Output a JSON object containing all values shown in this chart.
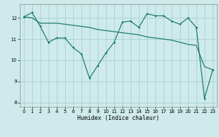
{
  "xlabel": "Humidex (Indice chaleur)",
  "bg_color": "#ceeaea",
  "line_color": "#1a7a6e",
  "grid_color": "#aacfcf",
  "ylim": [
    7.8,
    12.65
  ],
  "xlim": [
    -0.5,
    23.5
  ],
  "yticks": [
    8,
    9,
    10,
    11,
    12
  ],
  "xticks": [
    0,
    1,
    2,
    3,
    4,
    5,
    6,
    7,
    8,
    9,
    10,
    11,
    12,
    13,
    14,
    15,
    16,
    17,
    18,
    19,
    20,
    21,
    22,
    23
  ],
  "line1_x": [
    0,
    1,
    2,
    3,
    4,
    5,
    6,
    7,
    8,
    9,
    10,
    11,
    12,
    13,
    14,
    15,
    16,
    17,
    18,
    19,
    20,
    21
  ],
  "line1_y": [
    12.05,
    12.25,
    11.6,
    10.85,
    11.05,
    11.05,
    10.6,
    10.3,
    9.15,
    9.75,
    10.35,
    10.85,
    11.8,
    11.85,
    11.55,
    12.2,
    12.1,
    12.1,
    11.85,
    11.7,
    12.0,
    11.55
  ],
  "line2_x": [
    0,
    1,
    2,
    3,
    4,
    5,
    6,
    7,
    8,
    9,
    10,
    11,
    12,
    13,
    14,
    15,
    16,
    17,
    18,
    19,
    20,
    21,
    22,
    23
  ],
  "line2_y": [
    12.05,
    12.0,
    11.75,
    11.75,
    11.75,
    11.7,
    11.65,
    11.6,
    11.55,
    11.45,
    11.4,
    11.35,
    11.3,
    11.25,
    11.2,
    11.1,
    11.05,
    11.0,
    10.95,
    10.85,
    10.75,
    10.7,
    9.7,
    9.55
  ],
  "line3_x": [
    21,
    22,
    23
  ],
  "line3_y": [
    11.55,
    8.2,
    9.55
  ]
}
